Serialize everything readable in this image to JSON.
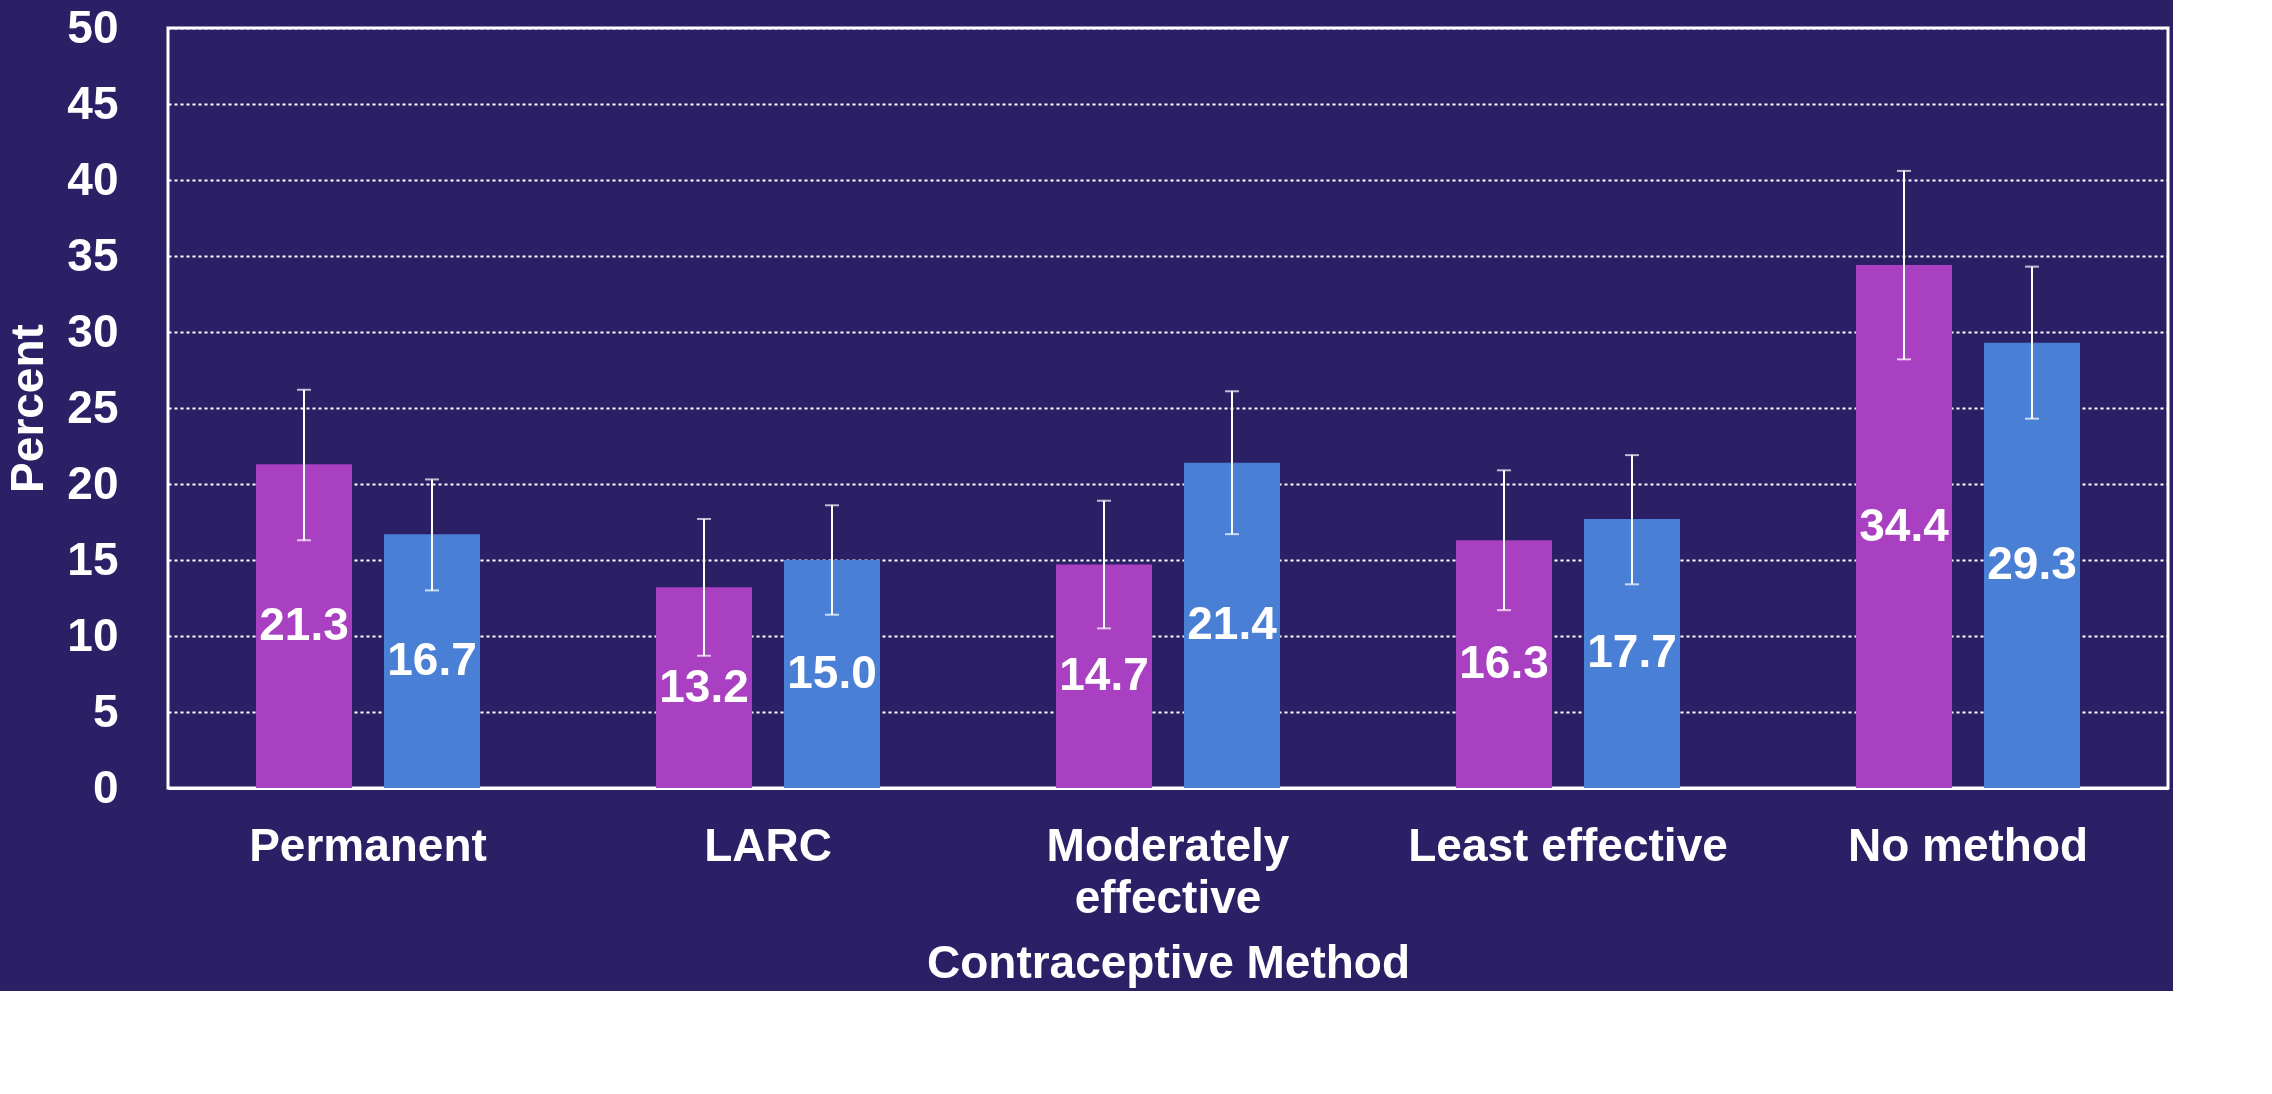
{
  "chart_data": {
    "type": "bar",
    "xlabel": "Contraceptive Method",
    "ylabel": "Percent",
    "categories": [
      "Permanent",
      "LARC",
      "Moderately\neffective",
      "Least effective",
      "No method"
    ],
    "series": [
      {
        "color": "#a93fc1",
        "values": [
          21.3,
          13.2,
          14.7,
          16.3,
          34.4
        ],
        "value_labels": [
          "21.3",
          "13.2",
          "14.7",
          "16.3",
          "34.4"
        ],
        "errors": [
          [
            16.3,
            26.2
          ],
          [
            8.7,
            17.7
          ],
          [
            10.5,
            18.9
          ],
          [
            11.7,
            20.9
          ],
          [
            28.2,
            40.6
          ]
        ]
      },
      {
        "color": "#4a7fd6",
        "values": [
          16.7,
          15.0,
          21.4,
          17.7,
          29.3
        ],
        "value_labels": [
          "16.7",
          "15.0",
          "21.4",
          "17.7",
          "29.3"
        ],
        "errors": [
          [
            13.0,
            20.3
          ],
          [
            11.4,
            18.6
          ],
          [
            16.7,
            26.1
          ],
          [
            13.4,
            21.9
          ],
          [
            24.3,
            34.3
          ]
        ]
      }
    ],
    "ylim": [
      0,
      50
    ],
    "yticks": [
      0,
      5,
      10,
      15,
      20,
      25,
      30,
      35,
      40,
      45,
      50
    ],
    "grid": "y"
  }
}
